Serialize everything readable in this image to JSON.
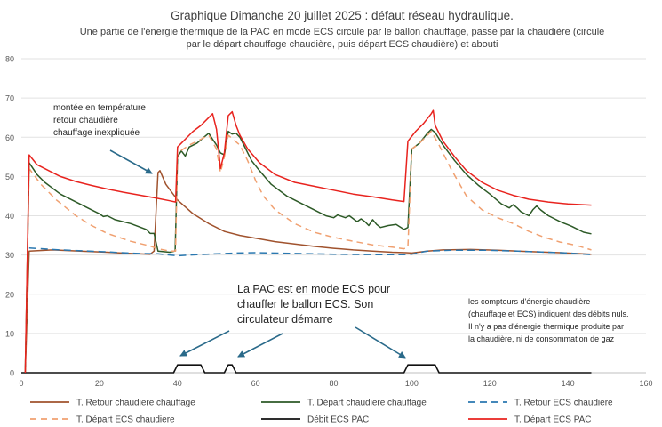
{
  "chart_data": {
    "type": "line",
    "title": "Graphique Dimanche 20 juillet 2025 : défaut réseau hydraulique.",
    "subtitle_lines": [
      "Une partie de l'énergie thermique de la PAC en mode ECS circule par le ballon chauffage, passe par la chaudière (circule",
      "par le départ chauffage chaudière, puis départ ECS chaudière) et abouti"
    ],
    "xlim": [
      0,
      160
    ],
    "ylim": [
      0,
      80
    ],
    "x_ticks": [
      0,
      20,
      40,
      60,
      80,
      100,
      120,
      140,
      160
    ],
    "y_ticks": [
      0,
      10,
      20,
      30,
      40,
      50,
      60,
      70,
      80
    ],
    "grid": true,
    "legend_position": "bottom",
    "series": [
      {
        "name": "T. Retour chaudiere chauffage",
        "color": "#a0522d",
        "dash": "solid",
        "points": [
          [
            1,
            0
          ],
          [
            2,
            31
          ],
          [
            8,
            31.3
          ],
          [
            15,
            31
          ],
          [
            22,
            30.7
          ],
          [
            28,
            30.4
          ],
          [
            33,
            30.2
          ],
          [
            34,
            31
          ],
          [
            35,
            51
          ],
          [
            35.5,
            51.5
          ],
          [
            37,
            48
          ],
          [
            40,
            44
          ],
          [
            44,
            40.5
          ],
          [
            48,
            38
          ],
          [
            52,
            36
          ],
          [
            56,
            35
          ],
          [
            60,
            34.3
          ],
          [
            65,
            33.4
          ],
          [
            70,
            32.8
          ],
          [
            75,
            32.2
          ],
          [
            80,
            31.7
          ],
          [
            85,
            31.3
          ],
          [
            90,
            31
          ],
          [
            95,
            30.7
          ],
          [
            98.5,
            30.6
          ],
          [
            100,
            30.5
          ],
          [
            104,
            31
          ],
          [
            108,
            31.3
          ],
          [
            115,
            31.4
          ],
          [
            122,
            31.2
          ],
          [
            130,
            30.9
          ],
          [
            138,
            30.6
          ],
          [
            146,
            30.2
          ]
        ]
      },
      {
        "name": "T. Départ chaudiere chauffage",
        "color": "#2d5a27",
        "dash": "solid",
        "points": [
          [
            1,
            0
          ],
          [
            2,
            53.5
          ],
          [
            4,
            50.5
          ],
          [
            6,
            48.5
          ],
          [
            10,
            45.5
          ],
          [
            14,
            43.5
          ],
          [
            18,
            41.5
          ],
          [
            20,
            40.5
          ],
          [
            21,
            39.8
          ],
          [
            22,
            40
          ],
          [
            24,
            39
          ],
          [
            28,
            38
          ],
          [
            32,
            36.5
          ],
          [
            33,
            35.5
          ],
          [
            34,
            35.5
          ],
          [
            35,
            31
          ],
          [
            38,
            30.7
          ],
          [
            39.4,
            31
          ],
          [
            40,
            55
          ],
          [
            41,
            56.5
          ],
          [
            42,
            55.2
          ],
          [
            43,
            57.5
          ],
          [
            45,
            58.5
          ],
          [
            47,
            60.2
          ],
          [
            48,
            61
          ],
          [
            49,
            59.5
          ],
          [
            50,
            58
          ],
          [
            51,
            56
          ],
          [
            52,
            55.5
          ],
          [
            53,
            61.5
          ],
          [
            54,
            60.8
          ],
          [
            55,
            61
          ],
          [
            56,
            60
          ],
          [
            57,
            58
          ],
          [
            59,
            54
          ],
          [
            61,
            51.5
          ],
          [
            64,
            48
          ],
          [
            68,
            45
          ],
          [
            72,
            43
          ],
          [
            76,
            41
          ],
          [
            78,
            40
          ],
          [
            80,
            39.5
          ],
          [
            81,
            40.2
          ],
          [
            83,
            39.5
          ],
          [
            84,
            40
          ],
          [
            86,
            38.5
          ],
          [
            87,
            39.2
          ],
          [
            88,
            38.5
          ],
          [
            89,
            37.5
          ],
          [
            90,
            39
          ],
          [
            91,
            37.8
          ],
          [
            92,
            37
          ],
          [
            94,
            37.5
          ],
          [
            96,
            37.8
          ],
          [
            98,
            36.5
          ],
          [
            99,
            37
          ],
          [
            100,
            57
          ],
          [
            102,
            58.5
          ],
          [
            104,
            61
          ],
          [
            105,
            62
          ],
          [
            106,
            61.2
          ],
          [
            108,
            58
          ],
          [
            111,
            54
          ],
          [
            114,
            50.5
          ],
          [
            117,
            47.8
          ],
          [
            120,
            45.5
          ],
          [
            123,
            43
          ],
          [
            125,
            42
          ],
          [
            126,
            42.8
          ],
          [
            127,
            42
          ],
          [
            128,
            41
          ],
          [
            130,
            40
          ],
          [
            131,
            41.5
          ],
          [
            132,
            42.5
          ],
          [
            133,
            41.5
          ],
          [
            135,
            40
          ],
          [
            138,
            38.5
          ],
          [
            141,
            37.3
          ],
          [
            144,
            35.8
          ],
          [
            146,
            35.4
          ]
        ]
      },
      {
        "name": "T. Retour ECS chaudiere",
        "color": "#2a78b0",
        "dash": "8,5",
        "points": [
          [
            2,
            31.8
          ],
          [
            10,
            31.3
          ],
          [
            20,
            30.9
          ],
          [
            30,
            30.4
          ],
          [
            35,
            30.3
          ],
          [
            40,
            29.8
          ],
          [
            45,
            30.1
          ],
          [
            55,
            30.5
          ],
          [
            60,
            30.6
          ],
          [
            70,
            30.4
          ],
          [
            80,
            30.2
          ],
          [
            90,
            30.1
          ],
          [
            98,
            30.1
          ],
          [
            100,
            30.2
          ],
          [
            104,
            31
          ],
          [
            110,
            31.2
          ],
          [
            120,
            31.2
          ],
          [
            130,
            30.9
          ],
          [
            140,
            30.5
          ],
          [
            146,
            30.1
          ]
        ]
      },
      {
        "name": "T. Départ ECS chaudiere",
        "color": "#f0a070",
        "dash": "7,5",
        "points": [
          [
            1,
            0
          ],
          [
            2,
            52
          ],
          [
            5,
            48
          ],
          [
            9,
            44
          ],
          [
            14,
            40
          ],
          [
            18,
            37.5
          ],
          [
            22,
            35.5
          ],
          [
            28,
            33.5
          ],
          [
            33,
            32.3
          ],
          [
            35,
            31.6
          ],
          [
            38,
            31
          ],
          [
            39.5,
            31
          ],
          [
            40,
            56
          ],
          [
            43,
            58
          ],
          [
            46,
            59.5
          ],
          [
            48,
            60.5
          ],
          [
            50,
            57
          ],
          [
            51,
            51
          ],
          [
            52,
            55
          ],
          [
            53,
            60.5
          ],
          [
            56,
            58
          ],
          [
            58,
            54
          ],
          [
            60,
            49
          ],
          [
            62,
            45
          ],
          [
            65,
            41.5
          ],
          [
            70,
            38
          ],
          [
            75,
            35.8
          ],
          [
            80,
            34.5
          ],
          [
            85,
            33.5
          ],
          [
            90,
            32.6
          ],
          [
            95,
            32
          ],
          [
            98,
            31.6
          ],
          [
            99,
            32
          ],
          [
            100,
            57
          ],
          [
            102,
            58.5
          ],
          [
            105,
            61.5
          ],
          [
            107,
            58
          ],
          [
            110,
            52
          ],
          [
            114,
            45
          ],
          [
            118,
            41.5
          ],
          [
            122,
            39.5
          ],
          [
            126,
            38
          ],
          [
            130,
            36
          ],
          [
            134,
            34.5
          ],
          [
            138,
            33.3
          ],
          [
            142,
            32.5
          ],
          [
            146,
            31.3
          ]
        ]
      },
      {
        "name": "Débit ECS PAC",
        "color": "#111111",
        "dash": "solid",
        "points": [
          [
            0,
            0
          ],
          [
            39,
            0
          ],
          [
            40,
            2
          ],
          [
            46,
            2
          ],
          [
            47,
            0
          ],
          [
            52,
            0
          ],
          [
            53,
            2
          ],
          [
            54,
            2
          ],
          [
            55,
            0
          ],
          [
            98,
            0
          ],
          [
            99,
            2
          ],
          [
            106,
            2
          ],
          [
            107,
            0
          ],
          [
            146,
            0
          ]
        ]
      },
      {
        "name": "T. Départ ECS PAC",
        "color": "#e8231e",
        "dash": "solid",
        "points": [
          [
            1,
            0
          ],
          [
            2,
            55.5
          ],
          [
            4,
            53
          ],
          [
            7,
            51.5
          ],
          [
            10,
            50
          ],
          [
            14,
            48.7
          ],
          [
            18,
            47.7
          ],
          [
            22,
            46.8
          ],
          [
            26,
            46
          ],
          [
            30,
            45.3
          ],
          [
            34,
            44.6
          ],
          [
            38,
            43.8
          ],
          [
            39.5,
            43.5
          ],
          [
            40,
            57.5
          ],
          [
            42,
            59.5
          ],
          [
            44,
            61.5
          ],
          [
            46,
            63
          ],
          [
            48,
            65
          ],
          [
            49,
            66
          ],
          [
            50,
            62
          ],
          [
            51,
            52
          ],
          [
            52,
            56
          ],
          [
            53,
            65.5
          ],
          [
            54,
            66.5
          ],
          [
            55,
            63
          ],
          [
            56,
            60.5
          ],
          [
            58,
            57
          ],
          [
            61,
            53.5
          ],
          [
            65,
            50.5
          ],
          [
            70,
            48.5
          ],
          [
            75,
            47.5
          ],
          [
            80,
            46.5
          ],
          [
            85,
            45.5
          ],
          [
            90,
            44.8
          ],
          [
            95,
            44
          ],
          [
            98,
            43.6
          ],
          [
            99,
            59
          ],
          [
            101,
            61.5
          ],
          [
            103,
            63.5
          ],
          [
            105,
            66
          ],
          [
            105.5,
            66.8
          ],
          [
            106,
            63
          ],
          [
            108,
            59
          ],
          [
            111,
            55
          ],
          [
            114,
            51.5
          ],
          [
            118,
            48.5
          ],
          [
            122,
            46.5
          ],
          [
            126,
            45.2
          ],
          [
            130,
            44.2
          ],
          [
            135,
            43.5
          ],
          [
            140,
            43
          ],
          [
            146,
            42.7
          ]
        ]
      }
    ],
    "annotations": {
      "top_left": [
        "montée en température",
        "retour chaudière",
        "chauffage inexpliquée"
      ],
      "center": [
        "La PAC est en mode ECS pour",
        "chauffer le ballon ECS. Son",
        "circulateur démarre"
      ],
      "right": [
        "les compteurs d'énergie chaudière",
        "(chauffage et ECS) indiquent des débits nuls.",
        "Il n'y a pas d'énergie thermique produite par",
        "la chaudière, ni de consommation de gaz"
      ]
    }
  }
}
